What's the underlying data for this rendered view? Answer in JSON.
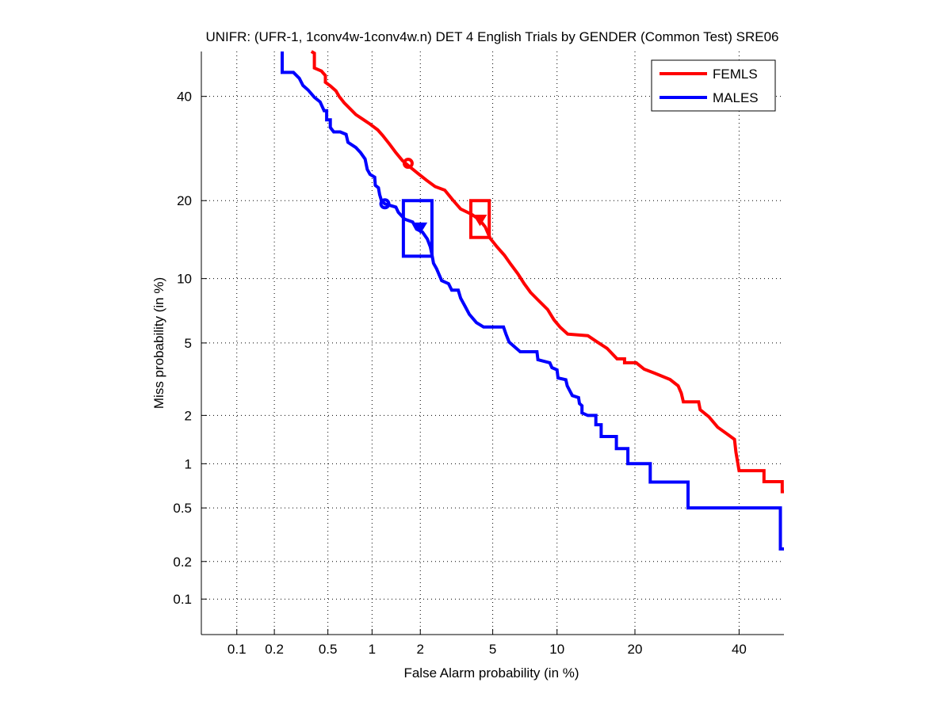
{
  "chart_data": {
    "type": "line",
    "title": "UNIFR: (UFR-1, 1conv4w-1conv4w.n) DET 4 English Trials by GENDER (Common Test) SRE06",
    "xlabel": "False Alarm probability (in %)",
    "ylabel": "Miss probability (in %)",
    "scale": "normal-deviate",
    "xlim": [
      0.05,
      50
    ],
    "ylim": [
      0.05,
      50
    ],
    "x_ticks": [
      0.1,
      0.2,
      0.5,
      1,
      2,
      5,
      10,
      20,
      40
    ],
    "x_tick_labels": [
      "0.1",
      "0.2",
      "0.5",
      "1",
      "2",
      "5",
      "10",
      "20",
      "40"
    ],
    "y_ticks": [
      0.1,
      0.2,
      0.5,
      1,
      2,
      5,
      10,
      20,
      40
    ],
    "y_tick_labels": [
      "0.1",
      "0.2",
      "0.5",
      "1",
      "2",
      "5",
      "10",
      "20",
      "40"
    ],
    "grid": true,
    "legend_position": "top-right",
    "series": [
      {
        "name": "FEMLS",
        "color": "#ff0000",
        "points": [
          [
            0.38,
            50
          ],
          [
            0.4,
            49.6
          ],
          [
            0.4,
            46.3
          ],
          [
            0.45,
            45.6
          ],
          [
            0.48,
            44.6
          ],
          [
            0.48,
            43.1
          ],
          [
            0.52,
            42.3
          ],
          [
            0.57,
            41.2
          ],
          [
            0.6,
            40.0
          ],
          [
            0.65,
            38.6
          ],
          [
            0.71,
            37.4
          ],
          [
            0.78,
            36.1
          ],
          [
            0.88,
            35.0
          ],
          [
            0.97,
            34.1
          ],
          [
            1.09,
            32.9
          ],
          [
            1.17,
            31.8
          ],
          [
            1.3,
            30.0
          ],
          [
            1.42,
            28.4
          ],
          [
            1.56,
            26.9
          ],
          [
            1.69,
            26.0
          ],
          [
            1.95,
            24.5
          ],
          [
            2.17,
            23.4
          ],
          [
            2.44,
            22.3
          ],
          [
            2.77,
            21.7
          ],
          [
            3.07,
            20.1
          ],
          [
            3.39,
            18.7
          ],
          [
            3.89,
            17.9
          ],
          [
            4.28,
            17.1
          ],
          [
            4.58,
            16.1
          ],
          [
            4.85,
            14.6
          ],
          [
            5.26,
            13.5
          ],
          [
            5.72,
            12.5
          ],
          [
            6.14,
            11.5
          ],
          [
            6.64,
            10.5
          ],
          [
            7.12,
            9.5
          ],
          [
            7.62,
            8.7
          ],
          [
            8.23,
            8.05
          ],
          [
            9.1,
            7.27
          ],
          [
            9.7,
            6.49
          ],
          [
            10.3,
            6.0
          ],
          [
            11.1,
            5.54
          ],
          [
            13.4,
            5.44
          ],
          [
            14.6,
            5.05
          ],
          [
            15.9,
            4.69
          ],
          [
            17.3,
            4.14
          ],
          [
            18.4,
            4.14
          ],
          [
            18.4,
            3.95
          ],
          [
            20.2,
            3.95
          ],
          [
            21.5,
            3.65
          ],
          [
            23.2,
            3.48
          ],
          [
            26.0,
            3.21
          ],
          [
            27.5,
            2.96
          ],
          [
            28.1,
            2.69
          ],
          [
            28.5,
            2.4
          ],
          [
            31.5,
            2.4
          ],
          [
            31.8,
            2.16
          ],
          [
            33.6,
            1.96
          ],
          [
            35.4,
            1.7
          ],
          [
            37.6,
            1.53
          ],
          [
            39.0,
            1.43
          ],
          [
            39.3,
            1.19
          ],
          [
            40.0,
            0.9
          ],
          [
            45.5,
            0.9
          ],
          [
            45.5,
            0.76
          ],
          [
            49.6,
            0.76
          ],
          [
            49.6,
            0.65
          ],
          [
            50,
            0.65
          ]
        ],
        "min_dcf_marker": [
          1.69,
          26.4
        ],
        "actual_dcf_marker": [
          4.3,
          17.1
        ],
        "confidence_box": {
          "x": [
            3.85,
            4.8
          ],
          "y": [
            14.7,
            20.0
          ]
        }
      },
      {
        "name": "MALES",
        "color": "#0000ff",
        "points": [
          [
            0.23,
            50
          ],
          [
            0.23,
            45.3
          ],
          [
            0.28,
            45.3
          ],
          [
            0.31,
            44.0
          ],
          [
            0.33,
            42.4
          ],
          [
            0.36,
            41.4
          ],
          [
            0.4,
            39.8
          ],
          [
            0.44,
            38.8
          ],
          [
            0.47,
            36.9
          ],
          [
            0.49,
            36.9
          ],
          [
            0.49,
            35.0
          ],
          [
            0.52,
            35.0
          ],
          [
            0.52,
            33.4
          ],
          [
            0.55,
            32.5
          ],
          [
            0.61,
            32.5
          ],
          [
            0.67,
            32.0
          ],
          [
            0.69,
            30.4
          ],
          [
            0.78,
            29.4
          ],
          [
            0.84,
            28.4
          ],
          [
            0.9,
            27.2
          ],
          [
            0.93,
            25.3
          ],
          [
            0.97,
            24.4
          ],
          [
            1.04,
            23.9
          ],
          [
            1.05,
            22.5
          ],
          [
            1.1,
            22.1
          ],
          [
            1.12,
            21.0
          ],
          [
            1.15,
            20.0
          ],
          [
            1.21,
            19.5
          ],
          [
            1.42,
            19.0
          ],
          [
            1.47,
            18.2
          ],
          [
            1.61,
            17.2
          ],
          [
            1.8,
            16.8
          ],
          [
            1.9,
            15.8
          ],
          [
            2.06,
            15.4
          ],
          [
            2.2,
            14.5
          ],
          [
            2.29,
            13.5
          ],
          [
            2.34,
            12.6
          ],
          [
            2.39,
            11.6
          ],
          [
            2.49,
            11.0
          ],
          [
            2.66,
            9.8
          ],
          [
            2.91,
            9.5
          ],
          [
            3.03,
            8.9
          ],
          [
            3.29,
            8.9
          ],
          [
            3.39,
            8.2
          ],
          [
            3.59,
            7.5
          ],
          [
            3.78,
            6.9
          ],
          [
            4.12,
            6.3
          ],
          [
            4.49,
            6.0
          ],
          [
            5.66,
            6.0
          ],
          [
            5.82,
            5.54
          ],
          [
            6.03,
            5.05
          ],
          [
            6.48,
            4.73
          ],
          [
            6.82,
            4.51
          ],
          [
            8.15,
            4.51
          ],
          [
            8.23,
            4.1
          ],
          [
            9.3,
            3.95
          ],
          [
            9.5,
            3.72
          ],
          [
            10.0,
            3.62
          ],
          [
            10.1,
            3.27
          ],
          [
            10.9,
            3.2
          ],
          [
            11.05,
            2.96
          ],
          [
            11.6,
            2.61
          ],
          [
            12.3,
            2.54
          ],
          [
            12.4,
            2.35
          ],
          [
            12.7,
            2.28
          ],
          [
            12.7,
            2.07
          ],
          [
            13.4,
            2.0
          ],
          [
            14.4,
            2.0
          ],
          [
            14.4,
            1.76
          ],
          [
            15.1,
            1.76
          ],
          [
            15.1,
            1.49
          ],
          [
            17.2,
            1.49
          ],
          [
            17.2,
            1.25
          ],
          [
            18.9,
            1.25
          ],
          [
            18.9,
            1.0
          ],
          [
            22.5,
            1.0
          ],
          [
            22.5,
            0.755
          ],
          [
            29.4,
            0.755
          ],
          [
            29.4,
            0.5
          ],
          [
            49.2,
            0.5
          ],
          [
            49.2,
            0.25
          ],
          [
            50,
            0.25
          ]
        ],
        "min_dcf_marker": [
          1.21,
          19.5
        ],
        "actual_dcf_marker": [
          2.0,
          16.0
        ],
        "confidence_box": {
          "x": [
            1.58,
            2.34
          ],
          "y": [
            12.4,
            20.0
          ]
        }
      }
    ]
  }
}
